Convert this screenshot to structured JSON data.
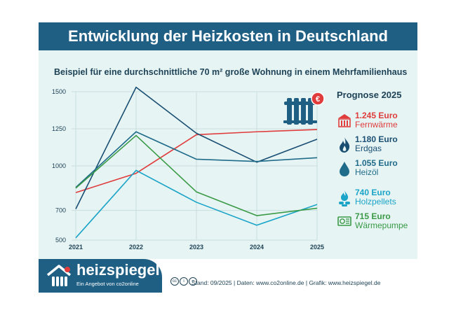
{
  "title": "Entwicklung der Heizkosten in Deutschland",
  "subtitle": "Beispiel für eine durchschnittliche 70 m² große Wohnung in einem Mehrfamilienhaus",
  "legend_title": "Prognose 2025",
  "legend": [
    {
      "value": "1.245 Euro",
      "name": "Fernwärme",
      "icon": "district-heating-icon",
      "color": "#e03c3c"
    },
    {
      "value": "1.180  Euro",
      "name": "Erdgas",
      "icon": "gas-flame-icon",
      "color": "#1a4f73"
    },
    {
      "value": "1.055 Euro",
      "name": "Heizöl",
      "icon": "oil-drop-icon",
      "color": "#1f6b8a"
    },
    {
      "value": "740 Euro",
      "name": "Holzpellets",
      "icon": "wood-pellets-icon",
      "color": "#1aa4c8"
    },
    {
      "value": "715 Euro",
      "name": "Wärmepumpe",
      "icon": "heat-pump-icon",
      "color": "#3a9a46"
    }
  ],
  "radiator_badge": "€",
  "brand": {
    "name": "heizspiegel",
    "tagline": "Ein Angebot von co2online"
  },
  "credits": "Stand: 09/2025  |  Daten: www.co2online.de  |  Grafik: www.heizspiegel.de",
  "chart_data": {
    "type": "line",
    "title": "Entwicklung der Heizkosten in Deutschland",
    "x": [
      "2021",
      "2022",
      "2023",
      "2024",
      "2025"
    ],
    "y_ticks": [
      1500,
      1250,
      1000,
      700,
      500
    ],
    "ylim": [
      500,
      1500
    ],
    "series": [
      {
        "name": "Fernwärme",
        "color": "#e03c3c",
        "values": [
          820,
          950,
          1210,
          1230,
          1245
        ]
      },
      {
        "name": "Erdgas",
        "color": "#1a4f73",
        "values": [
          710,
          1530,
          1220,
          1025,
          1180
        ]
      },
      {
        "name": "Heizöl",
        "color": "#1f6b8a",
        "values": [
          855,
          1230,
          1045,
          1030,
          1055
        ]
      },
      {
        "name": "Holzpellets",
        "color": "#1aa4c8",
        "values": [
          515,
          970,
          755,
          600,
          740
        ]
      },
      {
        "name": "Wärmepumpe",
        "color": "#3a9a46",
        "values": [
          850,
          1205,
          825,
          665,
          715
        ]
      }
    ]
  }
}
